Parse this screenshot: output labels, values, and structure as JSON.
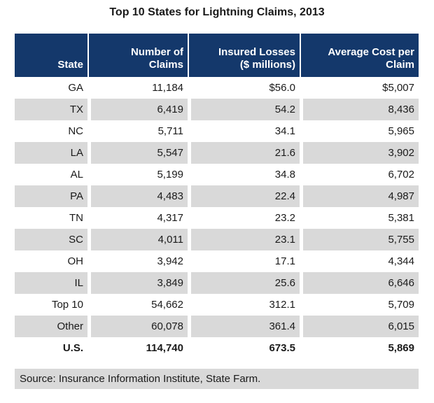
{
  "title": "Top 10 States for Lightning Claims, 2013",
  "colors": {
    "header_bg": "#14386B",
    "stripe": "#D9D9D9",
    "header_text": "#FFFFFF",
    "text": "#1A1A1A"
  },
  "table": {
    "columns": [
      {
        "label": "State"
      },
      {
        "label": "Number of\nClaims"
      },
      {
        "label": "Insured Losses\n($ millions)"
      },
      {
        "label": "Average Cost per\nClaim"
      }
    ],
    "rows": [
      {
        "state": "GA",
        "claims": "11,184",
        "losses": "$56.0",
        "avg_cost": "$5,007",
        "bold": false
      },
      {
        "state": "TX",
        "claims": "6,419",
        "losses": "54.2",
        "avg_cost": "8,436",
        "bold": false
      },
      {
        "state": "NC",
        "claims": "5,711",
        "losses": "34.1",
        "avg_cost": "5,965",
        "bold": false
      },
      {
        "state": "LA",
        "claims": "5,547",
        "losses": "21.6",
        "avg_cost": "3,902",
        "bold": false
      },
      {
        "state": "AL",
        "claims": "5,199",
        "losses": "34.8",
        "avg_cost": "6,702",
        "bold": false
      },
      {
        "state": "PA",
        "claims": "4,483",
        "losses": "22.4",
        "avg_cost": "4,987",
        "bold": false
      },
      {
        "state": "TN",
        "claims": "4,317",
        "losses": "23.2",
        "avg_cost": "5,381",
        "bold": false
      },
      {
        "state": "SC",
        "claims": "4,011",
        "losses": "23.1",
        "avg_cost": "5,755",
        "bold": false
      },
      {
        "state": "OH",
        "claims": "3,942",
        "losses": "17.1",
        "avg_cost": "4,344",
        "bold": false
      },
      {
        "state": "IL",
        "claims": "3,849",
        "losses": "25.6",
        "avg_cost": "6,646",
        "bold": false
      },
      {
        "state": "Top 10",
        "claims": "54,662",
        "losses": "312.1",
        "avg_cost": "5,709",
        "bold": false
      },
      {
        "state": "Other",
        "claims": "60,078",
        "losses": "361.4",
        "avg_cost": "6,015",
        "bold": false
      },
      {
        "state": "U.S.",
        "claims": "114,740",
        "losses": "673.5",
        "avg_cost": "5,869",
        "bold": true
      }
    ]
  },
  "source": "Source: Insurance Information Institute, State Farm.",
  "chart_data": {
    "type": "table",
    "title": "Top 10 States for Lightning Claims, 2013",
    "columns": [
      "State",
      "Number of Claims",
      "Insured Losses ($ millions)",
      "Average Cost per Claim"
    ],
    "rows": [
      [
        "GA",
        11184,
        56.0,
        5007
      ],
      [
        "TX",
        6419,
        54.2,
        8436
      ],
      [
        "NC",
        5711,
        34.1,
        5965
      ],
      [
        "LA",
        5547,
        21.6,
        3902
      ],
      [
        "AL",
        5199,
        34.8,
        6702
      ],
      [
        "PA",
        4483,
        22.4,
        4987
      ],
      [
        "TN",
        4317,
        23.2,
        5381
      ],
      [
        "SC",
        4011,
        23.1,
        5755
      ],
      [
        "OH",
        3942,
        17.1,
        4344
      ],
      [
        "IL",
        3849,
        25.6,
        6646
      ],
      [
        "Top 10",
        54662,
        312.1,
        5709
      ],
      [
        "Other",
        60078,
        361.4,
        6015
      ],
      [
        "U.S.",
        114740,
        673.5,
        5869
      ]
    ],
    "source": "Source: Insurance Information Institute, State Farm."
  }
}
